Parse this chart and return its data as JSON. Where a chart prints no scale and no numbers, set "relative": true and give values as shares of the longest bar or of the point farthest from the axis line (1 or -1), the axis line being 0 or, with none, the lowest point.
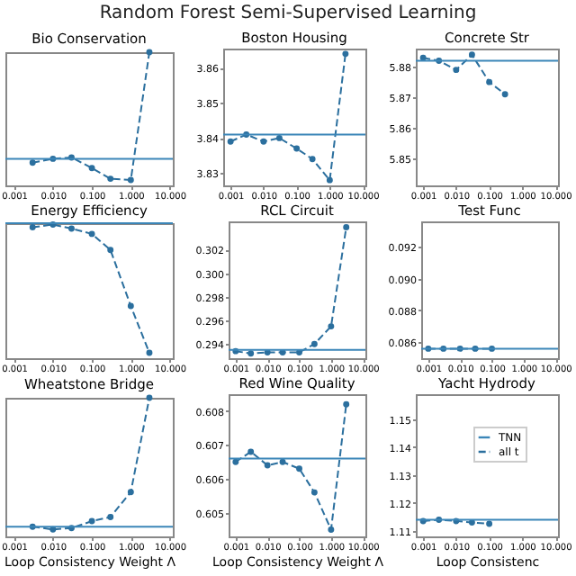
{
  "chart_data": [
    {
      "type": "line",
      "title": "Bio Conservation",
      "relative": true,
      "log": "x",
      "tick_labels": "x",
      "marker": "circle",
      "line_style": "dashed",
      "xlim": [
        0.0006,
        12
      ],
      "xticks": [
        {
          "value": 0.001,
          "label": "0.001"
        },
        {
          "value": 0.01,
          "label": "0.010"
        },
        {
          "value": 0.1,
          "label": "0.100"
        },
        {
          "value": 1,
          "label": "1.000"
        },
        {
          "value": 10,
          "label": "10.000"
        }
      ],
      "series": [
        {
          "color": "#2b6f9e",
          "x": [
            0.003,
            0.01,
            0.03,
            0.1,
            0.3,
            1,
            3
          ],
          "values": [
            0.17,
            0.2,
            0.21,
            0.13,
            0.05,
            0.04,
            1
          ]
        }
      ],
      "ref_lines": [
        {
          "axis": "y",
          "value": 0.2,
          "color": "#3b86b8",
          "line_style": "solid"
        }
      ]
    },
    {
      "type": "line",
      "title": "Boston Housing",
      "log": "x",
      "annotations": [
        "Random Forest Semi-Supervised Learning"
      ],
      "marker": "circle",
      "line_style": "dashed",
      "x": [
        0.001,
        0.003,
        0.01,
        0.03,
        0.1,
        0.3,
        1,
        3
      ],
      "xlim": [
        0.0006,
        12
      ],
      "xticks": [
        {
          "value": 0.001,
          "label": "0.001"
        },
        {
          "value": 0.01,
          "label": "0.010"
        },
        {
          "value": 0.1,
          "label": "0.100"
        },
        {
          "value": 1,
          "label": "1.000"
        },
        {
          "value": 10,
          "label": "10.000"
        }
      ],
      "ylim": [
        3.8265,
        3.8655
      ],
      "yticks": [
        3.83,
        3.84,
        3.85,
        3.86
      ],
      "series": [
        {
          "color": "#2b6f9e",
          "values": [
            3.839,
            3.841,
            3.839,
            3.84,
            3.837,
            3.834,
            3.828,
            3.864
          ]
        }
      ],
      "ref_lines": [
        {
          "axis": "y",
          "value": 3.841,
          "color": "#3b86b8",
          "line_style": "solid"
        }
      ]
    },
    {
      "type": "line",
      "title": "Concrete Str",
      "log": "x",
      "marker": "circle",
      "line_style": "dashed",
      "x": [
        0.001,
        0.003,
        0.01,
        0.03,
        0.1,
        0.3
      ],
      "xlim": [
        0.0006,
        12
      ],
      "xticks": [
        {
          "value": 0.001,
          "label": "0.001"
        },
        {
          "value": 0.01,
          "label": "0.010"
        },
        {
          "value": 0.1,
          "label": "0.100"
        },
        {
          "value": 1,
          "label": "1.000"
        },
        {
          "value": 10,
          "label": "10.000"
        }
      ],
      "ylim": [
        5.841,
        5.886
      ],
      "yticks": [
        5.85,
        5.86,
        5.87,
        5.88
      ],
      "series": [
        {
          "color": "#2b6f9e",
          "values": [
            5.883,
            5.882,
            5.879,
            5.884,
            5.875,
            5.871
          ]
        }
      ],
      "ref_lines": [
        {
          "axis": "y",
          "value": 5.882,
          "color": "#3b86b8",
          "line_style": "solid"
        }
      ]
    },
    {
      "type": "line",
      "title": "Energy Efficiency",
      "relative": true,
      "log": "x",
      "tick_labels": "x",
      "marker": "circle",
      "line_style": "dashed",
      "xlim": [
        0.0006,
        12
      ],
      "xticks": [
        {
          "value": 0.001,
          "label": "0.001"
        },
        {
          "value": 0.01,
          "label": "0.010"
        },
        {
          "value": 0.1,
          "label": "0.100"
        },
        {
          "value": 1,
          "label": "1.000"
        },
        {
          "value": 10,
          "label": "10.000"
        }
      ],
      "series": [
        {
          "color": "#2b6f9e",
          "x": [
            0.003,
            0.01,
            0.03,
            0.1,
            0.3,
            1,
            3
          ],
          "values": [
            0.98,
            1,
            0.97,
            0.93,
            0.81,
            0.39,
            0.04
          ]
        }
      ],
      "ref_lines": [
        {
          "axis": "y",
          "value": 1.01,
          "color": "#3b86b8",
          "line_style": "solid"
        }
      ]
    },
    {
      "type": "line",
      "title": "RCL Circuit",
      "log": "x",
      "marker": "circle",
      "line_style": "dashed",
      "x": [
        0.001,
        0.003,
        0.01,
        0.03,
        0.1,
        0.3,
        1,
        3
      ],
      "xlim": [
        0.0006,
        12
      ],
      "xticks": [
        {
          "value": 0.001,
          "label": "0.001"
        },
        {
          "value": 0.01,
          "label": "0.010"
        },
        {
          "value": 0.1,
          "label": "0.100"
        },
        {
          "value": 1,
          "label": "1.000"
        },
        {
          "value": 10,
          "label": "10.000"
        }
      ],
      "ylim": [
        0.2928,
        0.3044
      ],
      "yticks": [
        0.294,
        0.296,
        0.298,
        {
          "value": 0.3,
          "label": "0.300"
        },
        0.302
      ],
      "series": [
        {
          "color": "#2b6f9e",
          "values": [
            0.2934,
            0.2932,
            0.2933,
            0.2933,
            0.2933,
            0.294,
            0.2955,
            0.3039
          ]
        }
      ],
      "ref_lines": [
        {
          "axis": "y",
          "value": 0.2935,
          "color": "#3b86b8",
          "line_style": "solid"
        }
      ]
    },
    {
      "type": "line",
      "title": "Test Func",
      "log": "x",
      "marker": "circle",
      "line_style": "dashed",
      "x": [
        0.001,
        0.003,
        0.01,
        0.03,
        0.1
      ],
      "xlim": [
        0.0006,
        12
      ],
      "xticks": [
        {
          "value": 0.001,
          "label": "0.001"
        },
        {
          "value": 0.01,
          "label": "0.010"
        },
        {
          "value": 0.1,
          "label": "0.100"
        },
        {
          "value": 1,
          "label": "1.000"
        },
        {
          "value": 10,
          "label": "10.000"
        }
      ],
      "ylim": [
        0.085,
        0.0936
      ],
      "yticks": [
        0.086,
        0.088,
        {
          "value": 0.09,
          "label": "0.090"
        },
        0.092
      ],
      "series": [
        {
          "color": "#2b6f9e",
          "values": [
            0.0856,
            0.0856,
            0.0856,
            0.0856,
            0.0856
          ]
        }
      ],
      "ref_lines": [
        {
          "axis": "y",
          "value": 0.0856,
          "color": "#3b86b8",
          "line_style": "solid"
        }
      ]
    },
    {
      "type": "line",
      "title": "Wheatstone Bridge",
      "xlabel": "Loop Consistency Weight Λ",
      "relative": true,
      "log": "x",
      "tick_labels": "x",
      "marker": "circle",
      "line_style": "dashed",
      "xlim": [
        0.0006,
        12
      ],
      "xticks": [
        {
          "value": 0.001,
          "label": "0.001"
        },
        {
          "value": 0.01,
          "label": "0.010"
        },
        {
          "value": 0.1,
          "label": "0.100"
        },
        {
          "value": 1,
          "label": "1.000"
        },
        {
          "value": 10,
          "label": "10.000"
        }
      ],
      "series": [
        {
          "color": "#2b6f9e",
          "x": [
            0.003,
            0.01,
            0.03,
            0.1,
            0.3,
            1,
            3
          ],
          "values": [
            0.07,
            0.05,
            0.06,
            0.11,
            0.14,
            0.32,
            1
          ]
        }
      ],
      "ref_lines": [
        {
          "axis": "y",
          "value": 0.07,
          "color": "#3b86b8",
          "line_style": "solid"
        }
      ]
    },
    {
      "type": "line",
      "title": "Red Wine Quality",
      "log": "x",
      "xlabel": "Loop Consistency Weight Λ",
      "marker": "circle",
      "line_style": "dashed",
      "x": [
        0.001,
        0.003,
        0.01,
        0.03,
        0.1,
        0.3,
        1,
        3
      ],
      "xlim": [
        0.0006,
        12
      ],
      "xticks": [
        {
          "value": 0.001,
          "label": "0.001"
        },
        {
          "value": 0.01,
          "label": "0.010"
        },
        {
          "value": 0.1,
          "label": "0.100"
        },
        {
          "value": 1,
          "label": "1.000"
        },
        {
          "value": 10,
          "label": "10.000"
        }
      ],
      "ylim": [
        0.6043,
        0.6085
      ],
      "yticks": [
        0.605,
        0.606,
        0.607,
        0.608
      ],
      "series": [
        {
          "color": "#2b6f9e",
          "values": [
            0.6065,
            0.6068,
            0.6064,
            0.6065,
            0.6063,
            0.6056,
            0.6045,
            0.6082
          ]
        }
      ],
      "ref_lines": [
        {
          "axis": "y",
          "value": 0.6066,
          "color": "#3b86b8",
          "line_style": "solid"
        }
      ]
    },
    {
      "type": "line",
      "title": "Yacht Hydrody",
      "log": "x",
      "xlabel": "Loop Consistenc",
      "legend": "top right",
      "marker": "circle",
      "line_style": "dashed",
      "x": [
        0.001,
        0.003,
        0.01,
        0.03,
        0.1
      ],
      "xlim": [
        0.0006,
        12
      ],
      "xticks": [
        {
          "value": 0.001,
          "label": "0.001"
        },
        {
          "value": 0.01,
          "label": "0.010"
        },
        {
          "value": 0.1,
          "label": "0.100"
        },
        {
          "value": 1,
          "label": "1.000"
        },
        {
          "value": 10,
          "label": "10.000"
        }
      ],
      "ylim": [
        1.108,
        1.159
      ],
      "yticks": [
        1.11,
        1.12,
        1.13,
        1.14,
        1.15
      ],
      "series": [
        {
          "name": "all t",
          "color": "#2b6f9e",
          "values": [
            1.1135,
            1.114,
            1.1135,
            1.113,
            1.1125
          ]
        }
      ],
      "ref_lines": [
        {
          "axis": "y",
          "value": 1.114,
          "label": "TNN",
          "color": "#3b86b8",
          "line_style": "solid"
        }
      ]
    }
  ]
}
